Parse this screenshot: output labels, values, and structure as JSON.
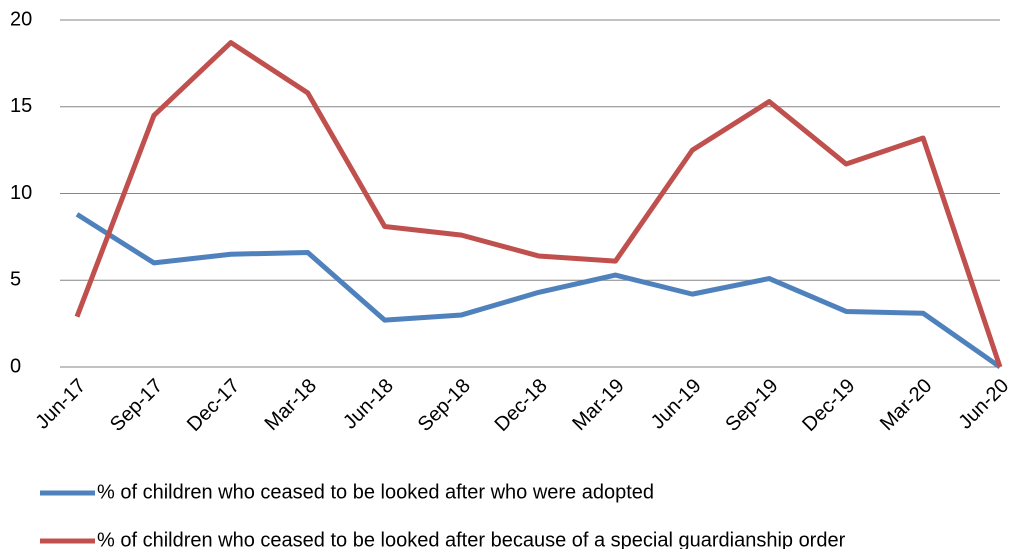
{
  "chart_data": {
    "type": "line",
    "categories": [
      "Jun-17",
      "Sep-17",
      "Dec-17",
      "Mar-18",
      "Jun-18",
      "Sep-18",
      "Dec-18",
      "Mar-19",
      "Jun-19",
      "Sep-19",
      "Dec-19",
      "Mar-20",
      "Jun-20"
    ],
    "series": [
      {
        "name": "% of children who ceased to be looked after who were adopted",
        "color": "#4f81bd",
        "values": [
          8.8,
          6.0,
          6.5,
          6.6,
          2.7,
          3.0,
          4.3,
          5.3,
          4.2,
          5.1,
          3.2,
          3.1,
          0
        ]
      },
      {
        "name": "% of children who ceased to be looked after because of a special guardianship order",
        "color": "#c0504d",
        "values": [
          2.9,
          14.5,
          18.7,
          15.8,
          8.1,
          7.6,
          6.4,
          6.1,
          12.5,
          15.3,
          11.7,
          13.2,
          0
        ]
      }
    ],
    "ylim": [
      0,
      20
    ],
    "yticks": [
      0,
      5,
      10,
      15,
      20
    ],
    "grid": true,
    "legend": "bottom"
  }
}
